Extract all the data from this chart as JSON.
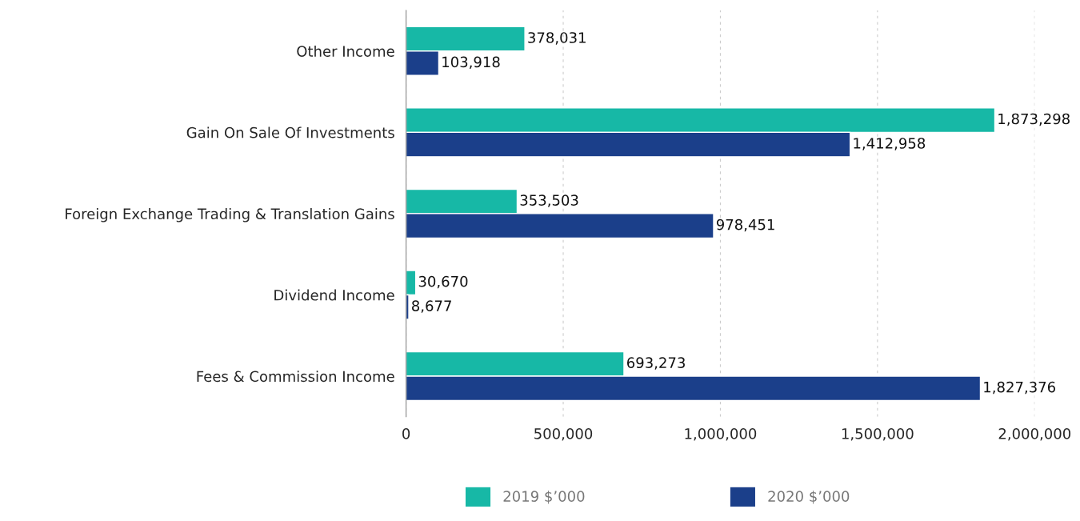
{
  "chart_data": {
    "type": "bar",
    "orientation": "horizontal",
    "categories": [
      "Other Income",
      "Gain On Sale Of Investments",
      "Foreign Exchange Trading & Translation Gains",
      "Dividend Income",
      "Fees & Commission Income"
    ],
    "series": [
      {
        "name": "2019 $’000",
        "color": "#17b8a6",
        "values": [
          378031,
          1873298,
          353503,
          30670,
          693273
        ],
        "value_labels": [
          "378,031",
          "1,873,298",
          "353,503",
          "30,670",
          "693,273"
        ]
      },
      {
        "name": "2020 $’000",
        "color": "#1b3f8a",
        "values": [
          103918,
          1412958,
          978451,
          8677,
          1827376
        ],
        "value_labels": [
          "103,918",
          "1,412,958",
          "978,451",
          "8,677",
          "1,827,376"
        ]
      }
    ],
    "xlim": [
      0,
      2000000
    ],
    "xticks": [
      {
        "value": 0,
        "label": "0"
      },
      {
        "value": 500000,
        "label": "500,000"
      },
      {
        "value": 1000000,
        "label": "1,000,000"
      },
      {
        "value": 1500000,
        "label": "1,500,000"
      },
      {
        "value": 2000000,
        "label": "2,000,000"
      }
    ],
    "grid": "x",
    "legend": "bottom"
  }
}
